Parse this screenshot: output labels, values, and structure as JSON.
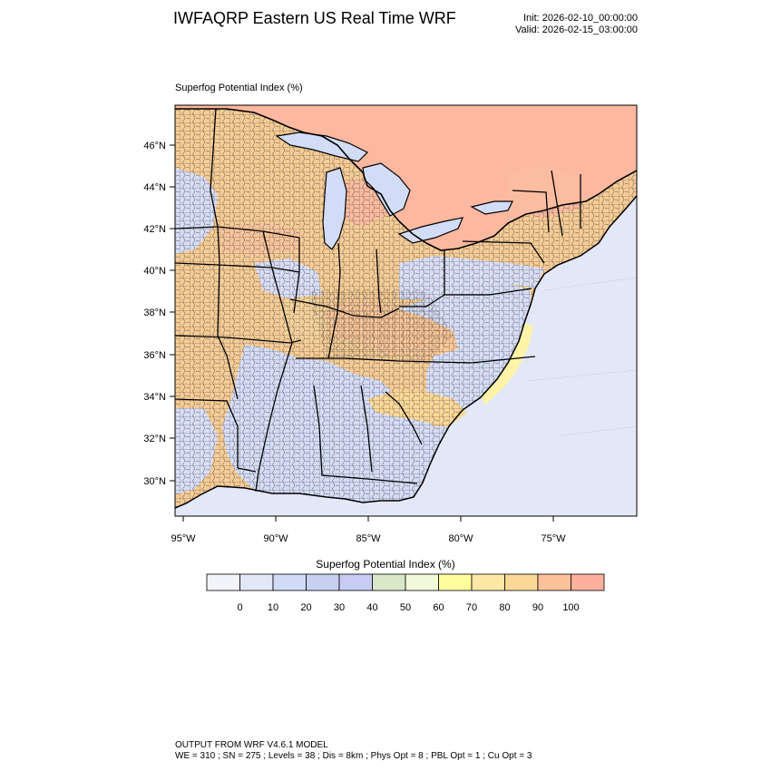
{
  "header": {
    "title": "IWFAQRP Eastern US Real Time WRF",
    "init": "Init: 2026-02-10_00:00:00",
    "valid": "Valid: 2026-02-15_03:00:00"
  },
  "plot": {
    "label": "Superfog Potential Index   (%)",
    "lat_labels": [
      "46°N",
      "44°N",
      "42°N",
      "40°N",
      "38°N",
      "36°N",
      "34°N",
      "32°N",
      "30°N"
    ],
    "lon_labels": [
      "95°W",
      "90°W",
      "85°W",
      "80°W",
      "75°W"
    ]
  },
  "colorbar": {
    "title": "Superfog Potential Index  (%)",
    "ticks": [
      "0",
      "10",
      "20",
      "30",
      "40",
      "50",
      "60",
      "70",
      "80",
      "90",
      "100"
    ],
    "colors": [
      "#f2f4fa",
      "#e3e8f8",
      "#d2dbf6",
      "#c8d0f2",
      "#c6ccf4",
      "#d8e8c8",
      "#f2f8da",
      "#ffff9e",
      "#fde8a8",
      "#fbd896",
      "#fcc09a",
      "#fdb09c"
    ]
  },
  "footer": {
    "line1": "OUTPUT FROM WRF V4.6.1 MODEL",
    "line2": "WE = 310 ; SN = 275 ; Levels = 38 ; Dis = 8km ; Phys Opt = 8 ; PBL Opt = 1 ; Cu Opt = 3"
  },
  "colors": {
    "ocean": "#e2e8f8",
    "canada": "#fdb8a0",
    "lakes": "#d2dcf6"
  }
}
